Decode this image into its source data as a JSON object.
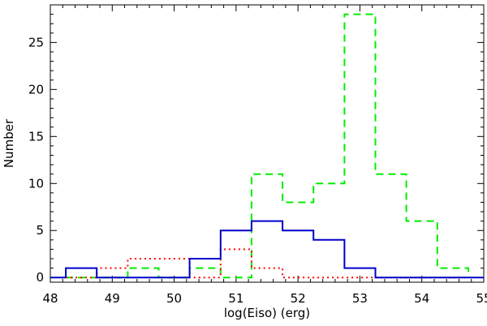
{
  "chart_data": {
    "type": "histogram",
    "xlabel": "log(Eiso) (erg)",
    "ylabel": "Number",
    "xlim": [
      48,
      55
    ],
    "ylim": [
      -0.5,
      29
    ],
    "x_ticks": [
      48,
      49,
      50,
      51,
      52,
      53,
      54,
      55
    ],
    "y_ticks": [
      0,
      5,
      10,
      15,
      20,
      25
    ],
    "bin_edges": [
      48.25,
      48.75,
      49.25,
      49.75,
      50.25,
      50.75,
      51.25,
      51.75,
      52.25,
      52.75,
      53.25,
      53.75,
      54.25,
      54.75
    ],
    "series": [
      {
        "color": "#0000cc",
        "linestyle": "solid",
        "values": [
          1,
          0,
          0,
          0,
          2,
          5,
          6,
          5,
          4,
          1,
          0,
          0,
          0
        ]
      },
      {
        "color": "#ff0000",
        "linestyle": "dotted",
        "values": [
          0,
          1,
          2,
          2,
          0,
          3,
          1,
          0,
          0,
          0,
          0,
          0,
          0
        ]
      },
      {
        "color": "#00ee00",
        "linestyle": "dashed",
        "values": [
          0,
          0,
          1,
          0,
          1,
          0,
          11,
          8,
          10,
          28,
          11,
          6,
          1
        ]
      }
    ]
  }
}
